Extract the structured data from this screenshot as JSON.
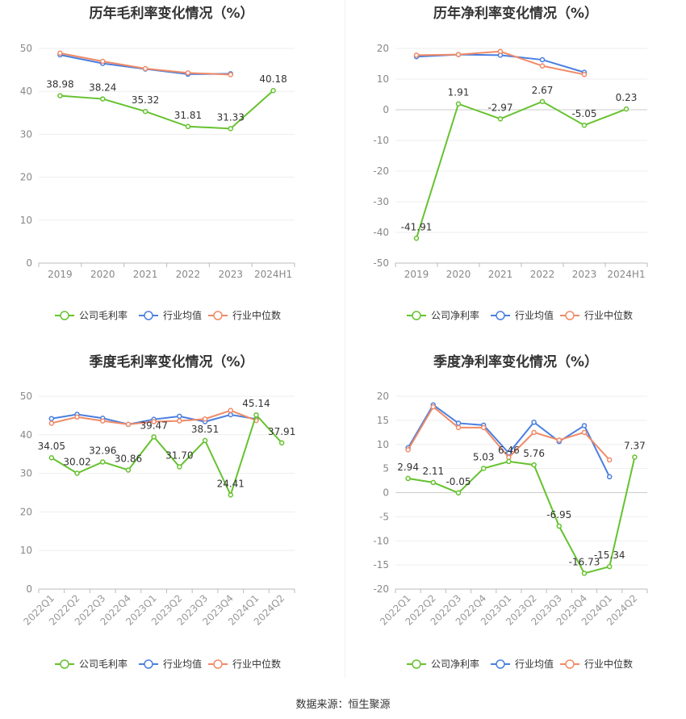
{
  "source_text": "数据来源：恒生聚源",
  "colors": {
    "company": "#66c22f",
    "avg": "#4a7fe0",
    "median": "#f08a67"
  },
  "chart_data": [
    {
      "id": "annual-gross",
      "type": "line",
      "title": "历年毛利率变化情况（%）",
      "categories": [
        "2019",
        "2020",
        "2021",
        "2022",
        "2023",
        "2024H1"
      ],
      "ylim": [
        0,
        50
      ],
      "yticks": [
        0,
        10,
        20,
        30,
        40,
        50
      ],
      "grid": true,
      "legend_position": "bottom",
      "series": [
        {
          "name": "公司毛利率",
          "role": "company",
          "values": [
            38.98,
            38.24,
            35.32,
            31.81,
            31.33,
            40.18
          ],
          "labels": [
            "38.98",
            "38.24",
            "35.32",
            "31.81",
            "31.33",
            "40.18"
          ]
        },
        {
          "name": "行业均值",
          "role": "avg",
          "values": [
            48.5,
            46.5,
            45.2,
            44.0,
            44.1,
            null
          ]
        },
        {
          "name": "行业中位数",
          "role": "median",
          "values": [
            48.9,
            47.0,
            45.3,
            44.3,
            43.9,
            null
          ]
        }
      ]
    },
    {
      "id": "annual-net",
      "type": "line",
      "title": "历年净利率变化情况（%）",
      "categories": [
        "2019",
        "2020",
        "2021",
        "2022",
        "2023",
        "2024H1"
      ],
      "ylim": [
        -50,
        20
      ],
      "yticks": [
        -50,
        -40,
        -30,
        -20,
        -10,
        0,
        10,
        20
      ],
      "grid": true,
      "legend_position": "bottom",
      "series": [
        {
          "name": "公司净利率",
          "role": "company",
          "values": [
            -41.91,
            1.91,
            -2.97,
            2.67,
            -5.05,
            0.23
          ],
          "labels": [
            "-41.91",
            "1.91",
            "-2.97",
            "2.67",
            "-5.05",
            "0.23"
          ]
        },
        {
          "name": "行业均值",
          "role": "avg",
          "values": [
            17.3,
            18.0,
            17.8,
            16.3,
            12.2,
            null
          ]
        },
        {
          "name": "行业中位数",
          "role": "median",
          "values": [
            17.8,
            18.0,
            19.0,
            14.3,
            11.5,
            null
          ]
        }
      ]
    },
    {
      "id": "quarterly-gross",
      "type": "line",
      "title": "季度毛利率变化情况（%）",
      "categories": [
        "2022Q1",
        "2022Q2",
        "2022Q3",
        "2022Q4",
        "2023Q1",
        "2023Q2",
        "2023Q3",
        "2023Q4",
        "2024Q1",
        "2024Q2"
      ],
      "ylim": [
        0,
        50
      ],
      "yticks": [
        0,
        10,
        20,
        30,
        40,
        50
      ],
      "grid": true,
      "legend_position": "bottom",
      "rotate_xticks": true,
      "series": [
        {
          "name": "公司毛利率",
          "role": "company",
          "values": [
            34.05,
            30.02,
            32.96,
            30.86,
            39.47,
            31.7,
            38.51,
            24.41,
            45.14,
            37.91
          ],
          "labels": [
            "34.05",
            "30.02",
            "32.96",
            "30.86",
            "39.47",
            "31.70",
            "38.51",
            "24.41",
            "45.14",
            "37.91"
          ]
        },
        {
          "name": "行业均值",
          "role": "avg",
          "values": [
            44.2,
            45.3,
            44.3,
            42.7,
            44.0,
            44.8,
            43.4,
            45.2,
            44.1,
            null
          ]
        },
        {
          "name": "行业中位数",
          "role": "median",
          "values": [
            43.0,
            44.6,
            43.6,
            42.7,
            43.4,
            43.6,
            44.1,
            46.3,
            43.7,
            null
          ]
        }
      ]
    },
    {
      "id": "quarterly-net",
      "type": "line",
      "title": "季度净利率变化情况（%）",
      "categories": [
        "2022Q1",
        "2022Q2",
        "2022Q3",
        "2022Q4",
        "2023Q1",
        "2023Q2",
        "2023Q3",
        "2023Q4",
        "2024Q1",
        "2024Q2"
      ],
      "ylim": [
        -20,
        20
      ],
      "yticks": [
        -20,
        -15,
        -10,
        -5,
        0,
        5,
        10,
        15,
        20
      ],
      "grid": true,
      "legend_position": "bottom",
      "rotate_xticks": true,
      "series": [
        {
          "name": "公司净利率",
          "role": "company",
          "values": [
            2.94,
            2.11,
            -0.05,
            5.03,
            6.46,
            5.76,
            -6.95,
            -16.73,
            -15.34,
            7.37
          ],
          "labels": [
            "2.94",
            "2.11",
            "-0.05",
            "5.03",
            "6.46",
            "5.76",
            "-6.95",
            "-16.73",
            "-15.34",
            "7.37"
          ]
        },
        {
          "name": "行业均值",
          "role": "avg",
          "values": [
            9.3,
            18.2,
            14.4,
            14.0,
            8.2,
            14.6,
            10.6,
            13.9,
            3.3,
            null
          ]
        },
        {
          "name": "行业中位数",
          "role": "median",
          "values": [
            8.9,
            17.8,
            13.5,
            13.5,
            7.3,
            12.5,
            10.9,
            12.5,
            6.8,
            null
          ]
        }
      ]
    }
  ]
}
